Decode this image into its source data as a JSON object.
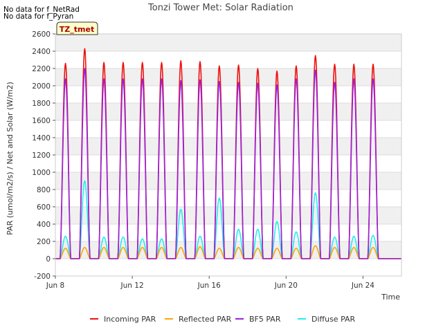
{
  "notes": [
    "No data for f_NetRad",
    "No data for f_Pyran"
  ],
  "chart_data": {
    "type": "line",
    "title": "Tonzi Tower Met: Solar Radiation",
    "xlabel": "Time",
    "ylabel": "PAR (umol/m2/s) / Net and Solar (W/m2)",
    "site_badge": "TZ_tmet",
    "ylim": [
      -200,
      2600
    ],
    "y_ticks": [
      -200,
      0,
      200,
      400,
      600,
      800,
      1000,
      1200,
      1400,
      1600,
      1800,
      2000,
      2200,
      2400,
      2600
    ],
    "xlim_days": [
      8,
      26
    ],
    "x_ticks": [
      {
        "day": 8,
        "label": "Jun 8"
      },
      {
        "day": 12,
        "label": "Jun 12"
      },
      {
        "day": 16,
        "label": "Jun 16"
      },
      {
        "day": 20,
        "label": "Jun 20"
      },
      {
        "day": 24,
        "label": "Jun 24"
      }
    ],
    "grid": true,
    "legend_position": "bottom",
    "days": [
      8,
      9,
      10,
      11,
      12,
      13,
      14,
      15,
      16,
      17,
      18,
      19,
      20,
      21,
      22,
      23,
      24,
      25
    ],
    "series": [
      {
        "name": "Incoming PAR",
        "color": "#ee1111",
        "daily_peak": [
          2260,
          2430,
          2270,
          2270,
          2270,
          2270,
          2290,
          2280,
          2230,
          2240,
          2200,
          2170,
          2230,
          2350,
          2250,
          2250,
          2250,
          0
        ]
      },
      {
        "name": "Reflected PAR",
        "color": "#ffa500",
        "daily_peak": [
          120,
          130,
          130,
          130,
          130,
          130,
          130,
          140,
          120,
          130,
          120,
          120,
          120,
          150,
          130,
          130,
          130,
          0
        ]
      },
      {
        "name": "BF5 PAR",
        "color": "#9922dd",
        "daily_peak": [
          2080,
          2200,
          2080,
          2080,
          2080,
          2080,
          2060,
          2070,
          2050,
          2040,
          2030,
          2010,
          2080,
          2180,
          2040,
          2080,
          2080,
          0
        ]
      },
      {
        "name": "Diffuse PAR",
        "color": "#22eeee",
        "daily_peak": [
          260,
          900,
          250,
          250,
          230,
          230,
          570,
          260,
          700,
          340,
          340,
          430,
          310,
          760,
          250,
          260,
          270,
          0
        ]
      }
    ]
  }
}
